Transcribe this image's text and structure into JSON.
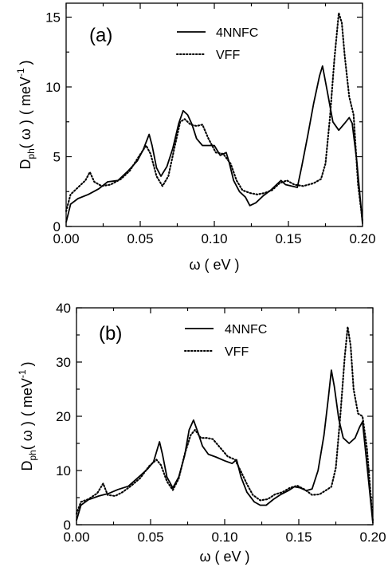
{
  "chart_data": [
    {
      "type": "line",
      "panel_label": "(a)",
      "xlabel": "ω ( eV )",
      "ylabel_main": "D",
      "ylabel_sub": "ph",
      "ylabel_arg": "( ω )",
      "ylabel_unit": "( meV",
      "ylabel_exp": "-1",
      "ylabel_close": ")",
      "xlim": [
        0,
        0.2
      ],
      "ylim": [
        0,
        16
      ],
      "x_ticks": [
        0,
        0.05,
        0.1,
        0.15,
        0.2
      ],
      "x_tick_labels": [
        "0.00",
        "0.05",
        "0.10",
        "0.15",
        "0.20"
      ],
      "y_ticks": [
        0,
        5,
        10,
        15
      ],
      "y_tick_labels": [
        "0",
        "5",
        "10",
        "15"
      ],
      "legend_position": "top-right",
      "series": [
        {
          "name": "4NNFC",
          "style": "solid",
          "points": [
            [
              0,
              0.3
            ],
            [
              0.003,
              1.6
            ],
            [
              0.008,
              2.0
            ],
            [
              0.015,
              2.3
            ],
            [
              0.022,
              2.7
            ],
            [
              0.028,
              3.2
            ],
            [
              0.035,
              3.3
            ],
            [
              0.042,
              4.0
            ],
            [
              0.048,
              4.7
            ],
            [
              0.052,
              5.5
            ],
            [
              0.056,
              6.6
            ],
            [
              0.058,
              5.8
            ],
            [
              0.061,
              4.2
            ],
            [
              0.064,
              3.6
            ],
            [
              0.068,
              4.3
            ],
            [
              0.072,
              5.6
            ],
            [
              0.076,
              7.4
            ],
            [
              0.079,
              8.3
            ],
            [
              0.082,
              8.0
            ],
            [
              0.085,
              7.3
            ],
            [
              0.088,
              6.3
            ],
            [
              0.092,
              5.8
            ],
            [
              0.096,
              5.8
            ],
            [
              0.1,
              5.8
            ],
            [
              0.104,
              5.1
            ],
            [
              0.108,
              5.3
            ],
            [
              0.11,
              4.6
            ],
            [
              0.113,
              3.3
            ],
            [
              0.117,
              2.5
            ],
            [
              0.121,
              2.1
            ],
            [
              0.124,
              1.5
            ],
            [
              0.128,
              1.7
            ],
            [
              0.133,
              2.2
            ],
            [
              0.138,
              2.6
            ],
            [
              0.142,
              3.0
            ],
            [
              0.145,
              3.3
            ],
            [
              0.148,
              3.0
            ],
            [
              0.152,
              2.9
            ],
            [
              0.156,
              2.8
            ],
            [
              0.159,
              4.3
            ],
            [
              0.163,
              6.5
            ],
            [
              0.167,
              8.8
            ],
            [
              0.171,
              10.8
            ],
            [
              0.173,
              11.5
            ],
            [
              0.176,
              9.8
            ],
            [
              0.18,
              7.5
            ],
            [
              0.184,
              6.9
            ],
            [
              0.188,
              7.4
            ],
            [
              0.191,
              7.8
            ],
            [
              0.193,
              7.4
            ],
            [
              0.196,
              4.8
            ],
            [
              0.2,
              0.2
            ]
          ]
        },
        {
          "name": "VFF",
          "style": "dotted",
          "points": [
            [
              0,
              1.1
            ],
            [
              0.003,
              2.3
            ],
            [
              0.008,
              2.8
            ],
            [
              0.013,
              3.3
            ],
            [
              0.016,
              3.9
            ],
            [
              0.019,
              3.2
            ],
            [
              0.024,
              2.9
            ],
            [
              0.03,
              3.0
            ],
            [
              0.037,
              3.4
            ],
            [
              0.043,
              4.0
            ],
            [
              0.049,
              5.0
            ],
            [
              0.054,
              5.8
            ],
            [
              0.057,
              5.2
            ],
            [
              0.061,
              3.6
            ],
            [
              0.065,
              2.9
            ],
            [
              0.069,
              3.6
            ],
            [
              0.073,
              5.6
            ],
            [
              0.077,
              7.5
            ],
            [
              0.08,
              7.7
            ],
            [
              0.084,
              7.3
            ],
            [
              0.088,
              7.2
            ],
            [
              0.092,
              7.3
            ],
            [
              0.096,
              6.3
            ],
            [
              0.101,
              5.3
            ],
            [
              0.106,
              5.2
            ],
            [
              0.111,
              4.5
            ],
            [
              0.115,
              3.3
            ],
            [
              0.119,
              2.6
            ],
            [
              0.124,
              2.4
            ],
            [
              0.129,
              2.3
            ],
            [
              0.134,
              2.4
            ],
            [
              0.139,
              2.6
            ],
            [
              0.144,
              3.1
            ],
            [
              0.149,
              3.3
            ],
            [
              0.154,
              3.0
            ],
            [
              0.16,
              2.9
            ],
            [
              0.167,
              3.1
            ],
            [
              0.172,
              3.4
            ],
            [
              0.175,
              4.5
            ],
            [
              0.178,
              7.8
            ],
            [
              0.181,
              12.0
            ],
            [
              0.184,
              15.3
            ],
            [
              0.186,
              14.6
            ],
            [
              0.188,
              12.2
            ],
            [
              0.191,
              9.3
            ],
            [
              0.194,
              8.0
            ],
            [
              0.197,
              3.0
            ],
            [
              0.2,
              0.4
            ]
          ]
        }
      ]
    },
    {
      "type": "line",
      "panel_label": "(b)",
      "xlabel": "ω ( eV )",
      "ylabel_main": "D",
      "ylabel_sub": "ph",
      "ylabel_arg": "( ω )",
      "ylabel_unit": "( meV",
      "ylabel_exp": "-1",
      "ylabel_close": ")",
      "xlim": [
        0,
        0.2
      ],
      "ylim": [
        0,
        40
      ],
      "x_ticks": [
        0,
        0.05,
        0.1,
        0.15,
        0.2
      ],
      "x_tick_labels": [
        "0.00",
        "0.05",
        "0.10",
        "0.15",
        "0.20"
      ],
      "y_ticks": [
        0,
        10,
        20,
        30,
        40
      ],
      "y_tick_labels": [
        "0",
        "10",
        "20",
        "30",
        "40"
      ],
      "legend_position": "top-right",
      "series": [
        {
          "name": "4NNFC",
          "style": "solid",
          "points": [
            [
              0,
              0.8
            ],
            [
              0.003,
              3.6
            ],
            [
              0.008,
              4.6
            ],
            [
              0.015,
              5.3
            ],
            [
              0.022,
              5.8
            ],
            [
              0.028,
              6.5
            ],
            [
              0.035,
              7.1
            ],
            [
              0.042,
              8.8
            ],
            [
              0.048,
              10.3
            ],
            [
              0.052,
              11.6
            ],
            [
              0.056,
              15.3
            ],
            [
              0.058,
              13.0
            ],
            [
              0.061,
              8.8
            ],
            [
              0.065,
              6.8
            ],
            [
              0.069,
              8.8
            ],
            [
              0.073,
              12.8
            ],
            [
              0.076,
              17.5
            ],
            [
              0.079,
              19.3
            ],
            [
              0.082,
              17.0
            ],
            [
              0.085,
              14.5
            ],
            [
              0.089,
              13.0
            ],
            [
              0.094,
              12.5
            ],
            [
              0.1,
              11.8
            ],
            [
              0.105,
              11.3
            ],
            [
              0.108,
              12.0
            ],
            [
              0.111,
              8.8
            ],
            [
              0.115,
              6.0
            ],
            [
              0.12,
              4.2
            ],
            [
              0.124,
              3.6
            ],
            [
              0.128,
              3.6
            ],
            [
              0.133,
              4.7
            ],
            [
              0.138,
              5.6
            ],
            [
              0.143,
              6.3
            ],
            [
              0.147,
              7.0
            ],
            [
              0.151,
              6.8
            ],
            [
              0.155,
              6.3
            ],
            [
              0.159,
              6.6
            ],
            [
              0.163,
              10.0
            ],
            [
              0.167,
              16.5
            ],
            [
              0.17,
              23.5
            ],
            [
              0.172,
              28.5
            ],
            [
              0.174,
              25.5
            ],
            [
              0.177,
              19.5
            ],
            [
              0.18,
              16.0
            ],
            [
              0.184,
              15.0
            ],
            [
              0.188,
              16.0
            ],
            [
              0.191,
              18.0
            ],
            [
              0.193,
              19.0
            ],
            [
              0.196,
              11.0
            ],
            [
              0.2,
              0.3
            ]
          ]
        },
        {
          "name": "VFF",
          "style": "dotted",
          "points": [
            [
              0,
              2.0
            ],
            [
              0.003,
              4.2
            ],
            [
              0.008,
              4.7
            ],
            [
              0.014,
              5.8
            ],
            [
              0.018,
              7.6
            ],
            [
              0.021,
              5.5
            ],
            [
              0.026,
              5.3
            ],
            [
              0.031,
              6.0
            ],
            [
              0.037,
              7.2
            ],
            [
              0.043,
              8.6
            ],
            [
              0.049,
              10.8
            ],
            [
              0.054,
              12.0
            ],
            [
              0.057,
              11.0
            ],
            [
              0.061,
              8.0
            ],
            [
              0.065,
              6.4
            ],
            [
              0.069,
              8.5
            ],
            [
              0.073,
              13.0
            ],
            [
              0.077,
              16.5
            ],
            [
              0.08,
              17.5
            ],
            [
              0.084,
              16.0
            ],
            [
              0.088,
              16.0
            ],
            [
              0.092,
              15.8
            ],
            [
              0.097,
              14.2
            ],
            [
              0.102,
              12.6
            ],
            [
              0.107,
              12.0
            ],
            [
              0.111,
              9.8
            ],
            [
              0.115,
              7.5
            ],
            [
              0.119,
              5.5
            ],
            [
              0.124,
              4.5
            ],
            [
              0.129,
              4.7
            ],
            [
              0.134,
              5.6
            ],
            [
              0.139,
              6.0
            ],
            [
              0.144,
              6.8
            ],
            [
              0.149,
              7.2
            ],
            [
              0.154,
              6.5
            ],
            [
              0.159,
              5.5
            ],
            [
              0.164,
              5.6
            ],
            [
              0.168,
              6.3
            ],
            [
              0.172,
              7.0
            ],
            [
              0.175,
              10.5
            ],
            [
              0.178,
              20.0
            ],
            [
              0.181,
              31.0
            ],
            [
              0.183,
              36.5
            ],
            [
              0.185,
              33.0
            ],
            [
              0.187,
              25.0
            ],
            [
              0.19,
              20.5
            ],
            [
              0.193,
              20.0
            ],
            [
              0.196,
              14.0
            ],
            [
              0.2,
              0.6
            ]
          ]
        }
      ]
    }
  ]
}
